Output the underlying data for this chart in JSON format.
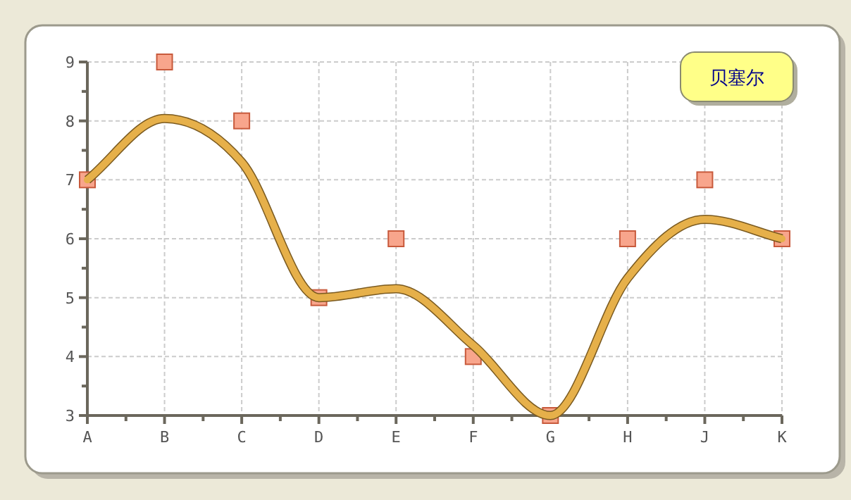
{
  "chart_data": {
    "type": "line",
    "categories": [
      "A",
      "B",
      "C",
      "D",
      "E",
      "F",
      "G",
      "H",
      "J",
      "K"
    ],
    "series": [
      {
        "type": "scatter",
        "color": "#f8a58c",
        "marker": "square",
        "values": [
          7,
          9,
          8,
          5,
          6,
          4,
          3,
          6,
          7,
          6
        ]
      },
      {
        "name": "贝塞尔",
        "color": "#e6b04a",
        "values": [
          7,
          8.04,
          7.3,
          5,
          5.15,
          4.19,
          3,
          5.33,
          6.33,
          6
        ]
      }
    ],
    "ylim": [
      3,
      9
    ],
    "yticks": [
      3,
      4,
      5,
      6,
      7,
      8,
      9
    ],
    "grid": true,
    "legend": "top right",
    "line_style": "solid"
  }
}
